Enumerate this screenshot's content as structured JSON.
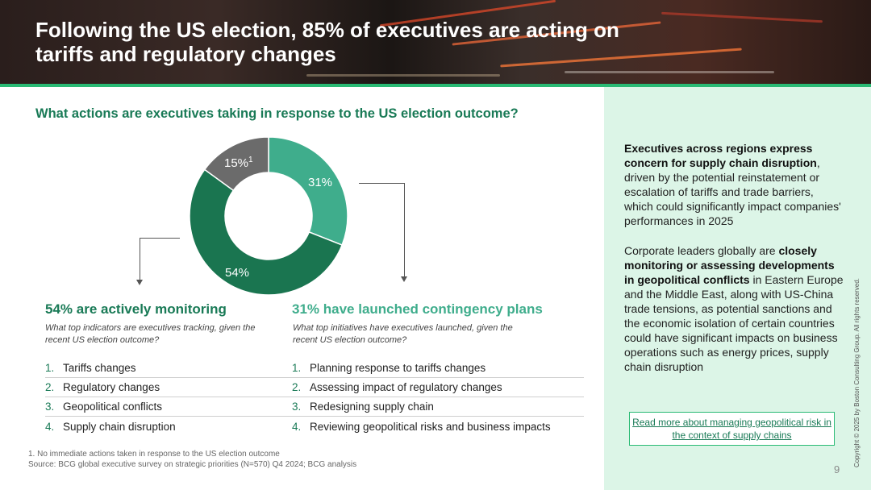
{
  "header": {
    "title": "Following the US election, 85% of executives are acting on tariffs and regulatory changes"
  },
  "question": "What actions are executives taking in response to the US election outcome?",
  "chart_data": {
    "type": "pie",
    "style": "donut",
    "categories": [
      "Launched contingency plans",
      "Actively monitoring",
      "No immediate actions"
    ],
    "values": [
      31,
      54,
      15
    ],
    "labels": [
      "31%",
      "54%",
      "15%"
    ],
    "footnote_marker": "1",
    "colors": [
      "#3fad8c",
      "#1a7550",
      "#6b6b6b"
    ]
  },
  "left_col": {
    "heading": "54% are actively monitoring",
    "subheading": "What top indicators are executives tracking, given the recent US election outcome?",
    "items": [
      {
        "num": "1.",
        "label": "Tariffs changes"
      },
      {
        "num": "2.",
        "label": "Regulatory changes"
      },
      {
        "num": "3.",
        "label": "Geopolitical conflicts"
      },
      {
        "num": "4.",
        "label": "Supply chain disruption"
      }
    ]
  },
  "right_col": {
    "heading": "31% have launched contingency plans",
    "subheading": "What top initiatives have executives launched, given the recent US election outcome?",
    "items": [
      {
        "num": "1.",
        "label": "Planning response to tariffs changes"
      },
      {
        "num": "2.",
        "label": "Assessing impact of regulatory changes"
      },
      {
        "num": "3.",
        "label": "Redesigning supply chain"
      },
      {
        "num": "4.",
        "label": "Reviewing geopolitical risks and business impacts"
      }
    ]
  },
  "footnotes": {
    "note": "1. No immediate actions taken in response to the US election outcome",
    "source": "Source: BCG global executive survey on strategic priorities (N=570) Q4 2024; BCG analysis"
  },
  "sidebar": {
    "p1_bold": "Executives across regions express concern for supply chain disruption",
    "p1_rest": ", driven by the potential reinstatement or escalation of tariffs and trade barriers, which could significantly impact companies' performances in 2025",
    "p2_start": "Corporate leaders globally are ",
    "p2_bold": "closely monitoring or assessing developments in geopolitical conflicts",
    "p2_rest": " in Eastern Europe and the Middle East, along with US-China trade tensions, as potential sanctions and the economic isolation of certain countries could have significant impacts on business operations such as energy prices, supply chain disruption",
    "link_label": "Read more about managing geopolitical risk in the context of supply chains"
  },
  "copyright": "Copyright © 2025 by Boston Consulting Group. All rights reserved.",
  "page_number": "9"
}
